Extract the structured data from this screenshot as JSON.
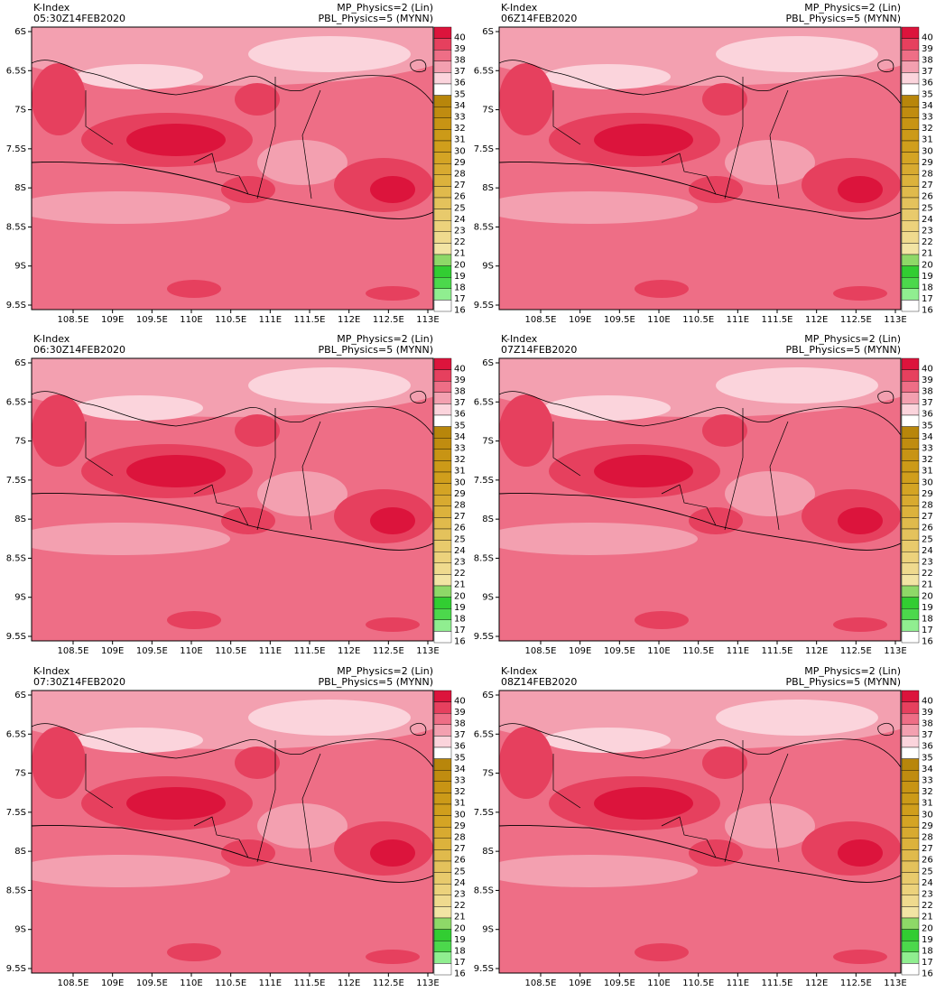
{
  "panels": [
    {
      "title": "K-Index",
      "time": "05:30Z14FEB2020",
      "mp": "MP_Physics=2 (Lin)",
      "pbl": "PBL_Physics=5 (MYNN)"
    },
    {
      "title": "K-Index",
      "time": "06Z14FEB2020",
      "mp": "MP_Physics=2 (Lin)",
      "pbl": "PBL_Physics=5 (MYNN)"
    },
    {
      "title": "K-Index",
      "time": "06:30Z14FEB2020",
      "mp": "MP_Physics=2 (Lin)",
      "pbl": "PBL_Physics=5 (MYNN)"
    },
    {
      "title": "K-Index",
      "time": "07Z14FEB2020",
      "mp": "MP_Physics=2 (Lin)",
      "pbl": "PBL_Physics=5 (MYNN)"
    },
    {
      "title": "K-Index",
      "time": "07:30Z14FEB2020",
      "mp": "MP_Physics=2 (Lin)",
      "pbl": "PBL_Physics=5 (MYNN)"
    },
    {
      "title": "K-Index",
      "time": "08Z14FEB2020",
      "mp": "MP_Physics=2 (Lin)",
      "pbl": "PBL_Physics=5 (MYNN)"
    }
  ],
  "lat_ticks": [
    "6S",
    "6.5S",
    "7S",
    "7.5S",
    "8S",
    "8.5S",
    "9S",
    "9.5S"
  ],
  "lon_ticks": [
    "108.5E",
    "109E",
    "109.5E",
    "110E",
    "110.5E",
    "111E",
    "111.5E",
    "112E",
    "112.5E",
    "113E"
  ],
  "colorbar": {
    "levels": [
      40,
      39,
      38,
      37,
      36,
      35,
      34,
      33,
      32,
      31,
      30,
      29,
      28,
      27,
      26,
      25,
      24,
      23,
      22,
      21,
      20,
      19,
      18,
      17,
      16
    ],
    "colors": [
      "#dc143c",
      "#e6405e",
      "#ee6e86",
      "#f3a0b0",
      "#fbd4dc",
      "#ffffff",
      "#b8860b",
      "#c08c10",
      "#c89414",
      "#cc9a18",
      "#d09e1c",
      "#d4a424",
      "#d8aa30",
      "#dcb23c",
      "#e0ba4c",
      "#e4c25c",
      "#e8ca6c",
      "#ecd27c",
      "#efda8e",
      "#f2e4a4",
      "#8ed868",
      "#32cd32",
      "#4cd84c",
      "#90ee90",
      "#ffffff"
    ]
  }
}
